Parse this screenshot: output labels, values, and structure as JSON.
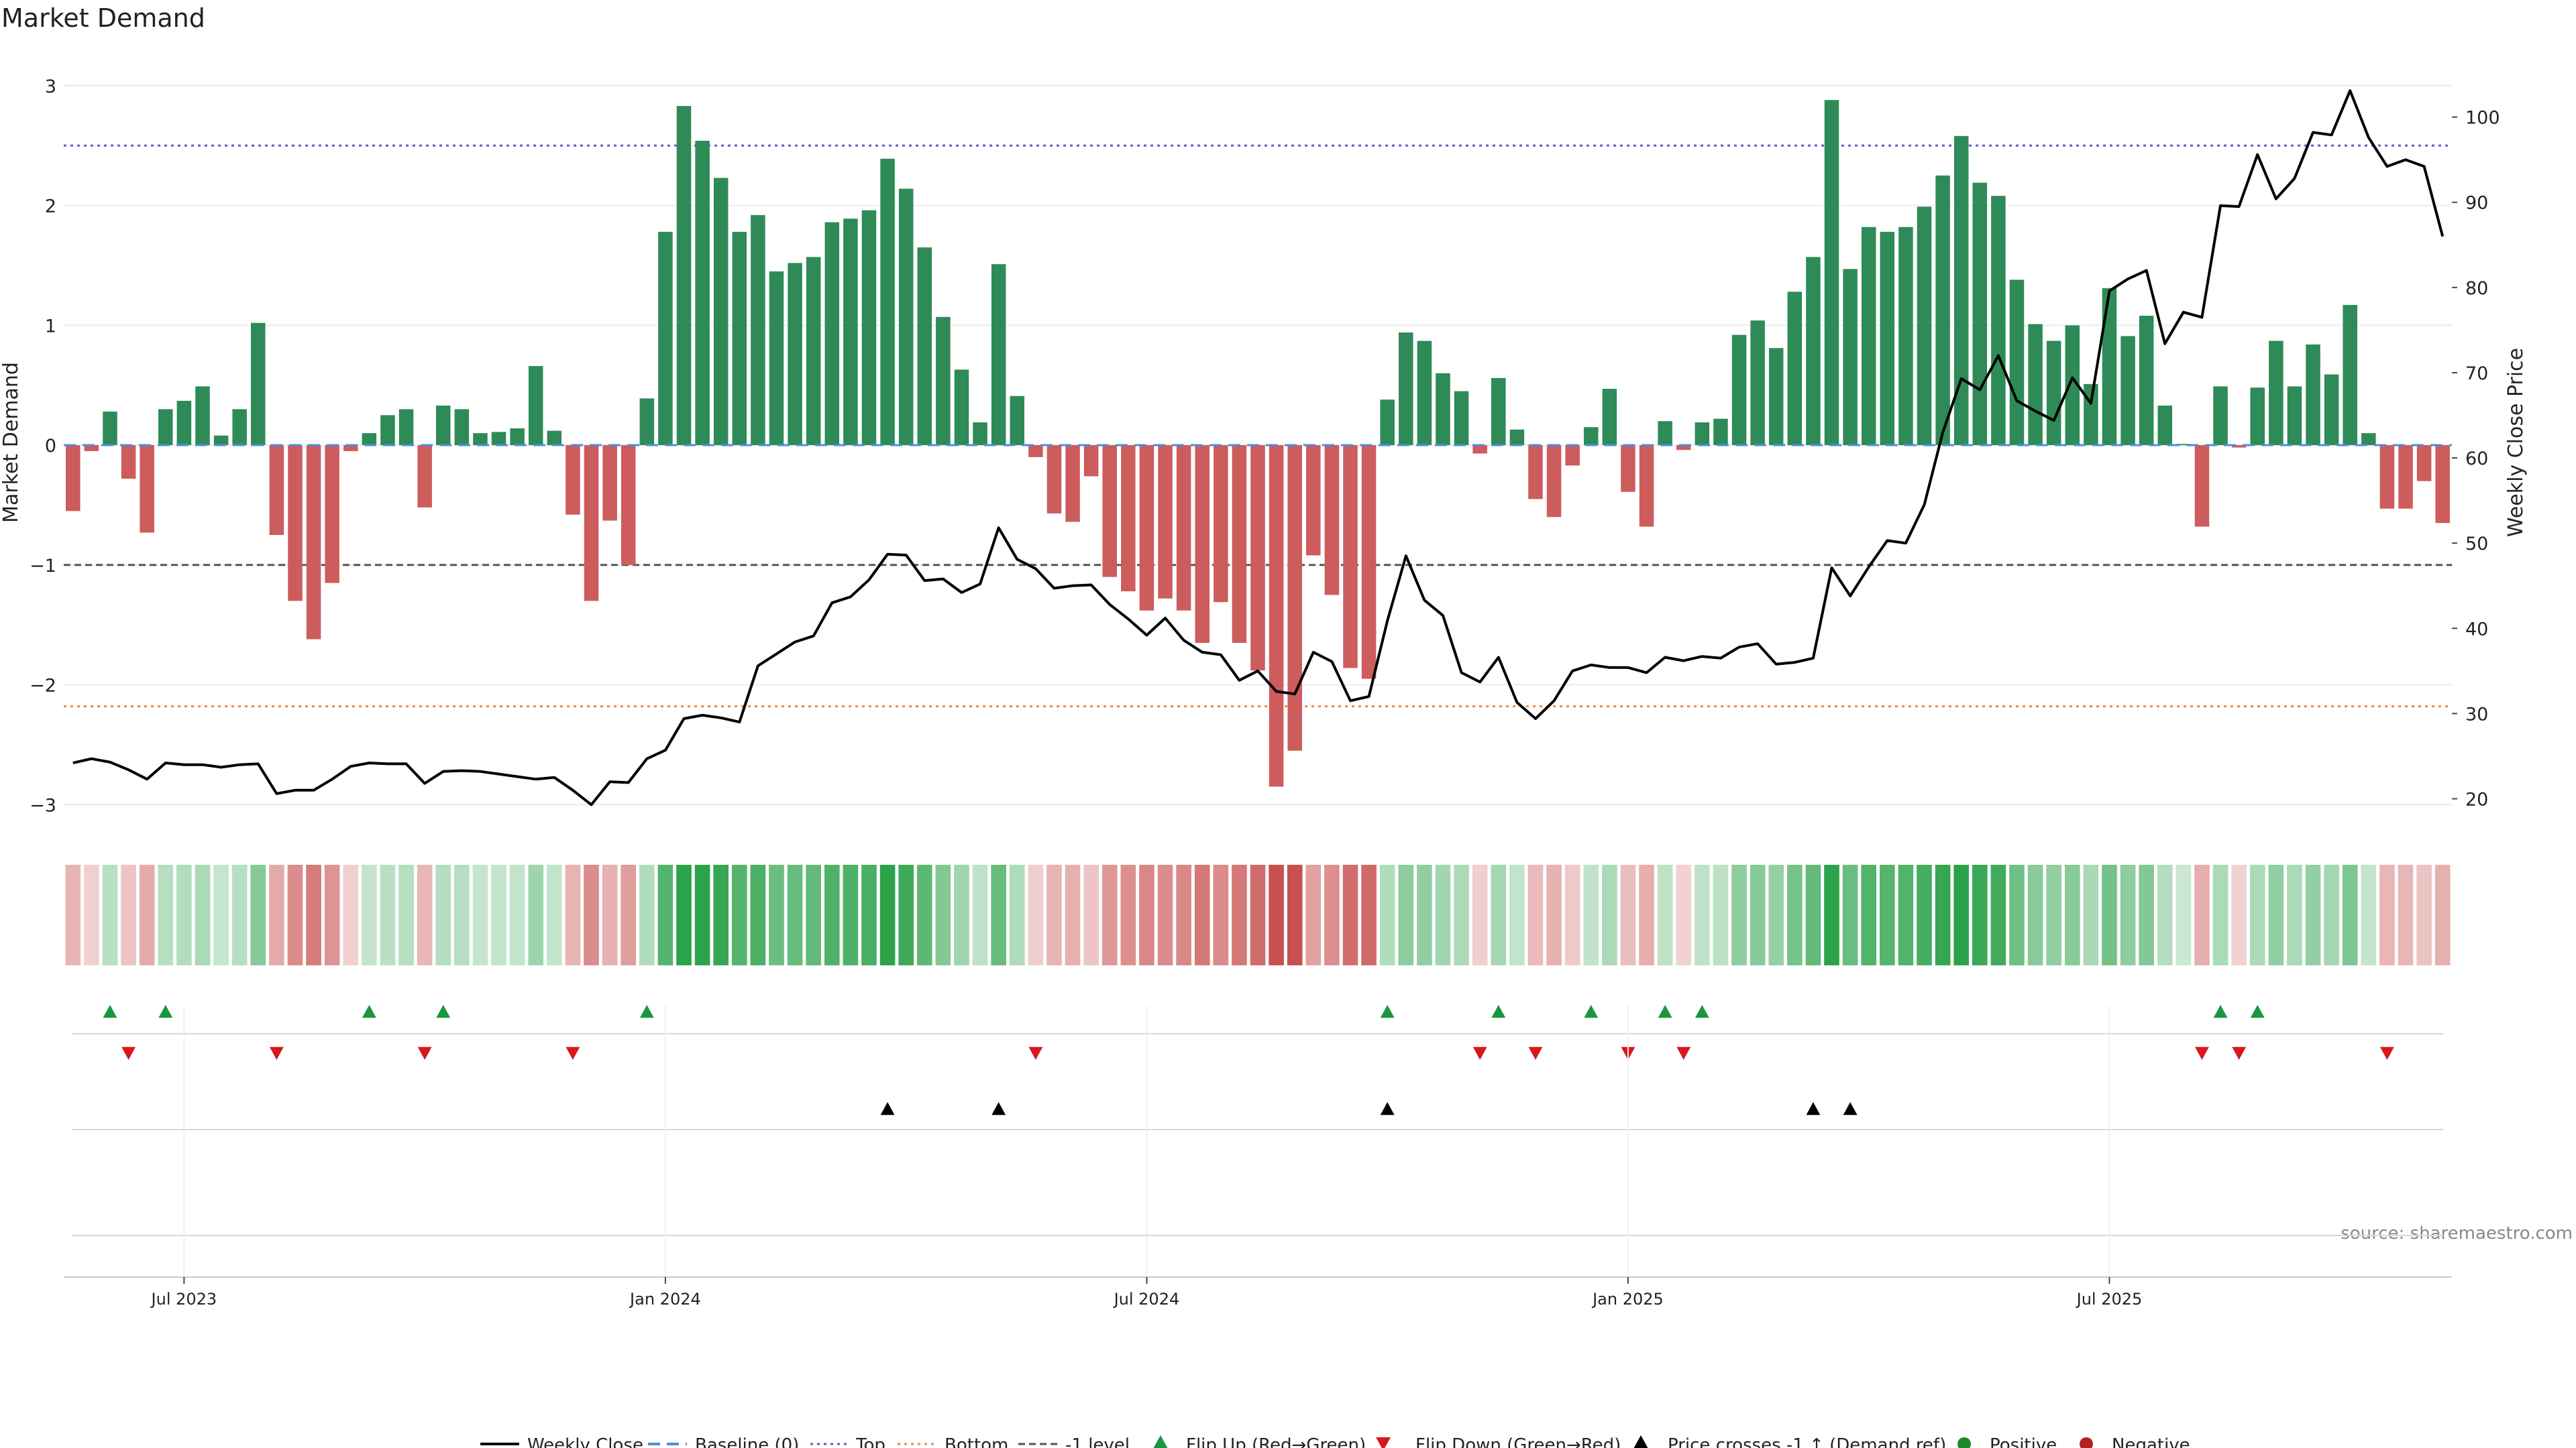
{
  "chart_data": {
    "type": "bar",
    "title": "Market Demand",
    "ylabel": "Market Demand",
    "y2label": "Weekly Close Price",
    "ylim": [
      -3.2,
      3.2
    ],
    "y2lim": [
      16.5,
      106.5
    ],
    "yticks": [
      {
        "value": 3,
        "label": "3"
      },
      {
        "value": 2,
        "label": "2"
      },
      {
        "value": 1,
        "label": "1"
      },
      {
        "value": 0,
        "label": "0"
      },
      {
        "value": -1,
        "label": "−1"
      },
      {
        "value": -2,
        "label": "−2"
      },
      {
        "value": -3,
        "label": "−3"
      }
    ],
    "y2ticks": [
      {
        "value": 100,
        "label": "100"
      },
      {
        "value": 90,
        "label": "90"
      },
      {
        "value": 80,
        "label": "80"
      },
      {
        "value": 70,
        "label": "70"
      },
      {
        "value": 60,
        "label": "60"
      },
      {
        "value": 50,
        "label": "50"
      },
      {
        "value": 40,
        "label": "40"
      },
      {
        "value": 30,
        "label": "30"
      },
      {
        "value": 20,
        "label": "20"
      }
    ],
    "xticks": [
      {
        "index": 6,
        "label": "Jul 2023"
      },
      {
        "index": 32,
        "label": "Jan 2024"
      },
      {
        "index": 58,
        "label": "Jul 2024"
      },
      {
        "index": 84,
        "label": "Jan 2025"
      },
      {
        "index": 110,
        "label": "Jul 2025"
      }
    ],
    "ref_lines": [
      {
        "name": "top",
        "value": 2.5,
        "color": "#5b5bd6",
        "dash": "dot"
      },
      {
        "name": "bottom",
        "value": -2.18,
        "color": "#f0883e",
        "dash": "dot"
      },
      {
        "name": "minus1",
        "value": -1.0,
        "color": "#555555",
        "dash": "dash"
      }
    ],
    "demand": [
      -0.55,
      -0.05,
      0.28,
      -0.28,
      -0.73,
      0.3,
      0.37,
      0.49,
      0.08,
      0.3,
      1.02,
      -0.75,
      -1.3,
      -1.62,
      -1.15,
      -0.05,
      0.1,
      0.25,
      0.3,
      -0.52,
      0.33,
      0.3,
      0.1,
      0.11,
      0.14,
      0.66,
      0.12,
      -0.58,
      -1.3,
      -0.63,
      -1.0,
      0.39,
      1.78,
      2.83,
      2.54,
      2.23,
      1.78,
      1.92,
      1.45,
      1.52,
      1.57,
      1.86,
      1.89,
      1.96,
      2.39,
      2.14,
      1.65,
      1.07,
      0.63,
      0.19,
      1.51,
      0.41,
      -0.1,
      -0.57,
      -0.64,
      -0.26,
      -1.1,
      -1.22,
      -1.38,
      -1.28,
      -1.38,
      -1.65,
      -1.31,
      -1.65,
      -1.88,
      -2.85,
      -2.55,
      -0.92,
      -1.25,
      -1.86,
      -1.95,
      0.38,
      0.94,
      0.87,
      0.6,
      0.45,
      -0.07,
      0.56,
      0.13,
      -0.45,
      -0.6,
      -0.17,
      0.15,
      0.47,
      -0.39,
      -0.68,
      0.2,
      -0.04,
      0.19,
      0.22,
      0.92,
      1.04,
      0.81,
      1.28,
      1.57,
      2.88,
      1.47,
      1.82,
      1.78,
      1.82,
      1.99,
      2.25,
      2.58,
      2.19,
      2.08,
      1.38,
      1.01,
      0.87,
      1.0,
      0.51,
      1.31,
      0.91,
      1.08,
      0.33,
      0.01,
      -0.68,
      0.49,
      -0.02,
      0.48,
      0.87,
      0.49,
      0.84,
      0.59,
      1.17,
      0.1,
      -0.53,
      -0.53,
      -0.3,
      -0.65
    ],
    "price": [
      24.2,
      24.7,
      24.3,
      23.4,
      22.3,
      24.2,
      24.0,
      24.0,
      23.7,
      24.0,
      24.1,
      20.6,
      21.0,
      21.0,
      22.3,
      23.8,
      24.2,
      24.1,
      24.1,
      21.8,
      23.2,
      23.3,
      23.2,
      22.9,
      22.6,
      22.3,
      22.5,
      21.0,
      19.3,
      22.0,
      21.9,
      24.7,
      25.7,
      29.4,
      29.8,
      29.5,
      29.0,
      35.6,
      37.0,
      38.4,
      39.1,
      43.0,
      43.7,
      45.7,
      48.7,
      48.6,
      45.6,
      45.8,
      44.2,
      45.2,
      51.8,
      48.1,
      47.0,
      44.7,
      45.0,
      45.1,
      42.8,
      41.1,
      39.2,
      41.2,
      38.6,
      37.2,
      36.9,
      33.9,
      35.0,
      32.6,
      32.3,
      37.2,
      36.1,
      31.5,
      32.0,
      40.9,
      48.5,
      43.3,
      41.5,
      34.8,
      33.7,
      36.6,
      31.3,
      29.4,
      31.5,
      35.0,
      35.7,
      35.4,
      35.4,
      34.8,
      36.6,
      36.2,
      36.7,
      36.5,
      37.8,
      38.2,
      35.8,
      36.0,
      36.5,
      47.1,
      43.8,
      47.2,
      50.3,
      50.0,
      54.5,
      63.0,
      69.3,
      68.0,
      72.0,
      66.7,
      65.5,
      64.4,
      69.4,
      66.4,
      79.6,
      81.0,
      82.0,
      73.4,
      77.1,
      76.5,
      89.6,
      89.5,
      95.6,
      90.4,
      92.8,
      98.2,
      97.9,
      103.1,
      97.6,
      94.2,
      95.0,
      94.2,
      86.0
    ],
    "flip_up": [
      2,
      5,
      16,
      20,
      31,
      71,
      77,
      82,
      86,
      88,
      116,
      118
    ],
    "flip_down": [
      3,
      11,
      19,
      27,
      52,
      76,
      79,
      84,
      87,
      115,
      117,
      125
    ],
    "price_cross": [
      44,
      50,
      71,
      94,
      96
    ],
    "heat_cells": 129,
    "legend": [
      {
        "key": "close",
        "label": "Weekly Close"
      },
      {
        "key": "baseline",
        "label": "Baseline (0)"
      },
      {
        "key": "top",
        "label": "Top"
      },
      {
        "key": "bottom",
        "label": "Bottom"
      },
      {
        "key": "minus1",
        "label": "-1 level"
      },
      {
        "key": "flipup",
        "label": "Flip Up (Red→Green)"
      },
      {
        "key": "flipdown",
        "label": "Flip Down (Green→Red)"
      },
      {
        "key": "cross",
        "label": "Price crosses -1 ↑ (Demand ref)"
      },
      {
        "key": "positive",
        "label": "Positive"
      },
      {
        "key": "negative",
        "label": "Negative"
      }
    ],
    "source": "source: sharemaestro.com",
    "colors": {
      "positive": "#2e8b57",
      "negative": "#cd5c5c",
      "price": "#000000",
      "baseline": "#4a90d9",
      "flipup": "#1a9641",
      "flipdown": "#d7191c",
      "pos_dot": "#1a8a2a",
      "neg_dot": "#b22222"
    }
  }
}
